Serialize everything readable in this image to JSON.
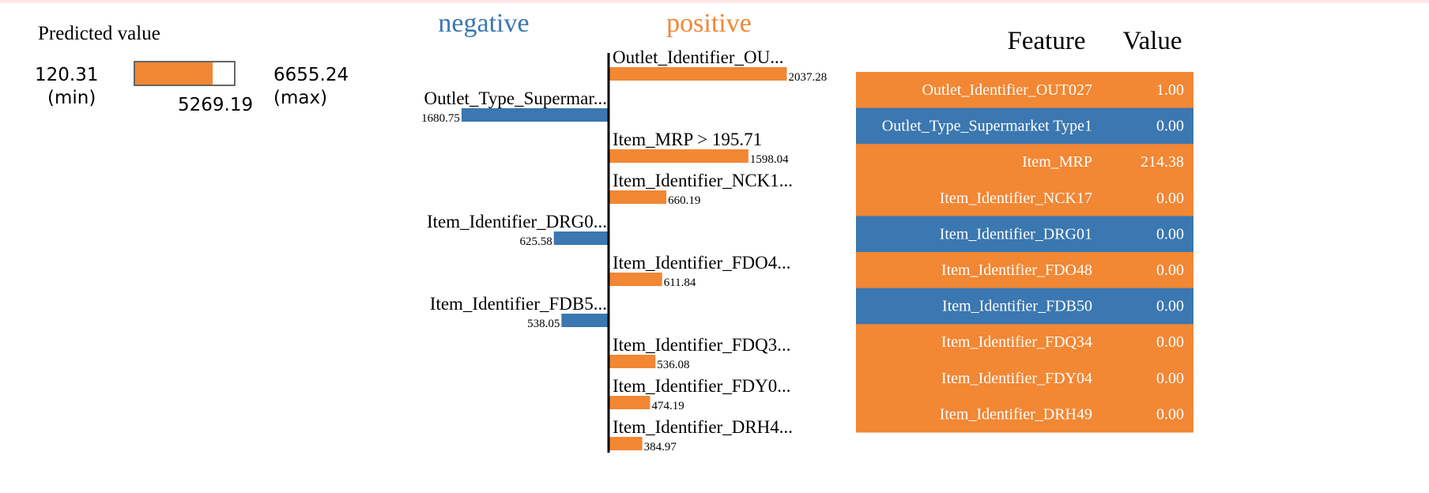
{
  "colors": {
    "positive": "#f28734",
    "negative": "#3b77b0",
    "tableText": "#ffffff"
  },
  "predicted": {
    "heading": "Predicted value",
    "min": "120.31",
    "min_label": "(min)",
    "max": "6655.24",
    "max_label": "(max)",
    "value_label": "5269.19",
    "value_fraction": 0.7848
  },
  "legend": {
    "negative": "negative",
    "positive": "positive"
  },
  "chart_data": {
    "type": "bar",
    "orientation": "horizontal",
    "categories": [
      "Outlet_Identifier_OU...",
      "Outlet_Type_Supermar...",
      "Item_MRP > 195.71",
      "Item_Identifier_NCK1...",
      "Item_Identifier_DRG0...",
      "Item_Identifier_FDO4...",
      "Item_Identifier_FDB5...",
      "Item_Identifier_FDQ3...",
      "Item_Identifier_FDY0...",
      "Item_Identifier_DRH4..."
    ],
    "values": [
      2037.28,
      -1680.75,
      1598.04,
      660.19,
      -625.58,
      611.84,
      -538.05,
      536.08,
      474.19,
      384.97
    ],
    "value_labels": [
      "2037.28",
      "1680.75",
      "1598.04",
      "660.19",
      "625.58",
      "611.84",
      "538.05",
      "536.08",
      "474.19",
      "384.97"
    ]
  },
  "table": {
    "headers": [
      "Feature",
      "Value"
    ],
    "rows": [
      {
        "feature": "Outlet_Identifier_OUT027",
        "value": "1.00",
        "sign": "positive"
      },
      {
        "feature": "Outlet_Type_Supermarket Type1",
        "value": "0.00",
        "sign": "negative"
      },
      {
        "feature": "Item_MRP",
        "value": "214.38",
        "sign": "positive"
      },
      {
        "feature": "Item_Identifier_NCK17",
        "value": "0.00",
        "sign": "positive"
      },
      {
        "feature": "Item_Identifier_DRG01",
        "value": "0.00",
        "sign": "negative"
      },
      {
        "feature": "Item_Identifier_FDO48",
        "value": "0.00",
        "sign": "positive"
      },
      {
        "feature": "Item_Identifier_FDB50",
        "value": "0.00",
        "sign": "negative"
      },
      {
        "feature": "Item_Identifier_FDQ34",
        "value": "0.00",
        "sign": "positive"
      },
      {
        "feature": "Item_Identifier_FDY04",
        "value": "0.00",
        "sign": "positive"
      },
      {
        "feature": "Item_Identifier_DRH49",
        "value": "0.00",
        "sign": "positive"
      }
    ]
  }
}
